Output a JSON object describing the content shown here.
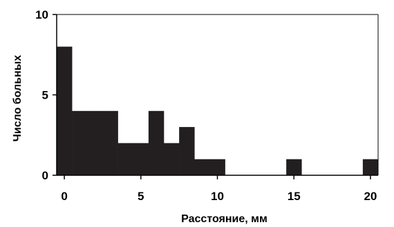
{
  "chart_data": {
    "type": "bar",
    "title": "",
    "xlabel": "Расстояние, мм",
    "ylabel": "Число больных",
    "xlim": [
      -0.5,
      20.5
    ],
    "ylim": [
      0,
      10
    ],
    "x_ticks": [
      0,
      5,
      10,
      15,
      20
    ],
    "y_ticks": [
      0,
      5,
      10
    ],
    "bin_width": 1,
    "bin_starts": [
      -0.5,
      0.5,
      1.5,
      2.5,
      3.5,
      4.5,
      5.5,
      6.5,
      7.5,
      8.5,
      9.5,
      10.5,
      11.5,
      12.5,
      13.5,
      14.5,
      15.5,
      16.5,
      17.5,
      18.5,
      19.5
    ],
    "values": [
      8,
      4,
      4,
      4,
      2,
      2,
      4,
      2,
      3,
      1,
      1,
      0,
      0,
      0,
      0,
      1,
      0,
      0,
      0,
      0,
      1
    ],
    "bar_color": "#231f20",
    "grid": false
  }
}
